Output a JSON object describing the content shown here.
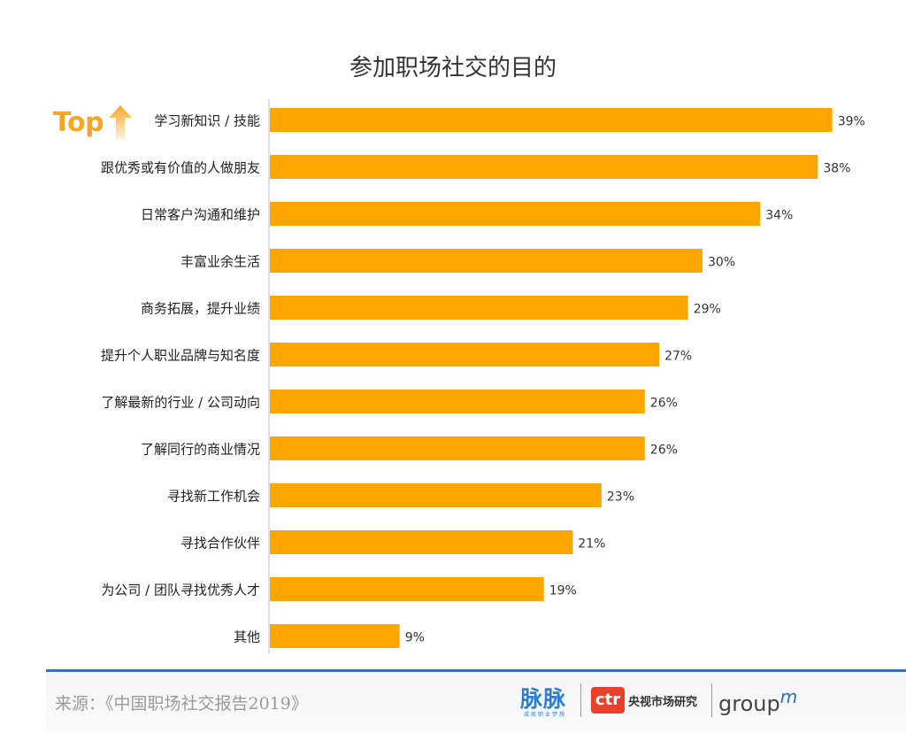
{
  "page": {
    "title": "参加职场社交的目的",
    "top_badge": "Top",
    "source": "来源：《中国职场社交报告2019》",
    "logos": {
      "maimai": "脉脉",
      "maimai_sub": "成就职业梦想",
      "ctr_mark": "ctr",
      "ctr_name": "央视市场研究",
      "groupm_word": "group",
      "groupm_m": "m"
    }
  },
  "chart_data": {
    "type": "bar",
    "orientation": "horizontal",
    "categories": [
      "学习新知识 / 技能",
      "跟优秀或有价值的人做朋友",
      "日常客户沟通和维护",
      "丰富业余生活",
      "商务拓展，提升业绩",
      "提升个人职业品牌与知名度",
      "了解最新的行业 / 公司动向",
      "了解同行的商业情况",
      "寻找新工作机会",
      "寻找合作伙伴",
      "为公司 / 团队寻找优秀人才",
      "其他"
    ],
    "values": [
      39,
      38,
      34,
      30,
      29,
      27,
      26,
      26,
      23,
      21,
      19,
      9
    ],
    "value_labels": [
      "39%",
      "38%",
      "34%",
      "30%",
      "29%",
      "27%",
      "26%",
      "26%",
      "23%",
      "21%",
      "19%",
      "9%"
    ],
    "unit": "%",
    "bar_color": "#FFA500",
    "grid": false,
    "legend": "none"
  }
}
